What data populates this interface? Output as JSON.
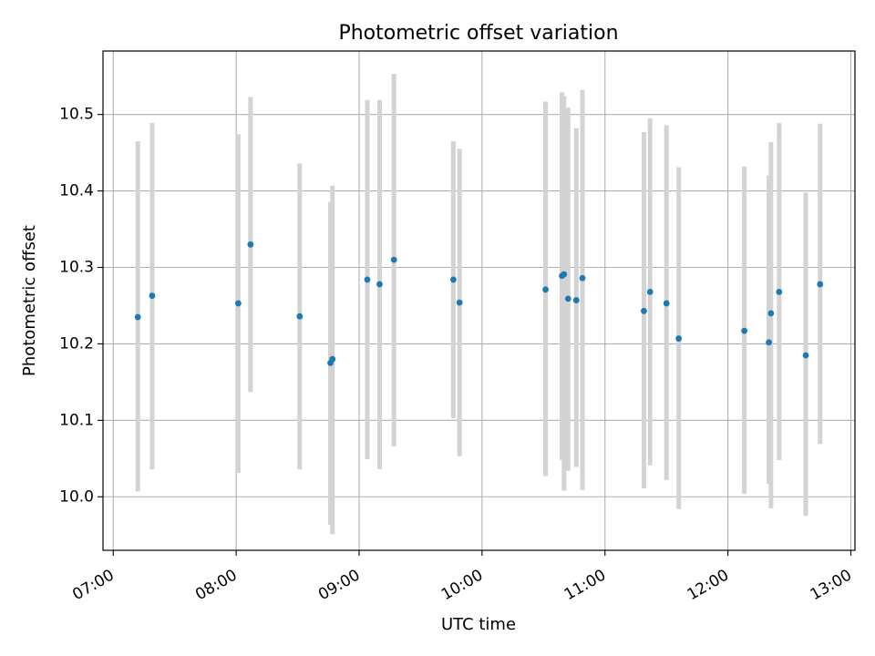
{
  "chart_data": {
    "type": "scatter",
    "title": "Photometric offset variation",
    "xlabel": "UTC time",
    "ylabel": "Photometric offset",
    "grid": true,
    "legend": "none",
    "xlim": [
      "06:55",
      "13:02"
    ],
    "ylim": [
      9.93,
      10.583
    ],
    "x_ticks": [
      "07:00",
      "08:00",
      "09:00",
      "10:00",
      "11:00",
      "12:00",
      "13:00"
    ],
    "y_ticks": [
      "10.0",
      "10.1",
      "10.2",
      "10.3",
      "10.4",
      "10.5"
    ],
    "colors": {
      "points": "#1f77b4",
      "errorbars": "#d3d3d3",
      "grid": "#b0b0b0"
    },
    "series": [
      {
        "x": [
          "07:12",
          "07:19",
          "08:01",
          "08:07",
          "08:31",
          "08:46",
          "08:47",
          "09:04",
          "09:10",
          "09:17",
          "09:46",
          "09:49",
          "10:31",
          "10:39",
          "10:40",
          "10:42",
          "10:46",
          "10:49",
          "11:19",
          "11:22",
          "11:30",
          "11:36",
          "12:08",
          "12:20",
          "12:21",
          "12:25",
          "12:38",
          "12:45"
        ],
        "y": [
          10.235,
          10.263,
          10.253,
          10.33,
          10.236,
          10.175,
          10.18,
          10.284,
          10.278,
          10.31,
          10.284,
          10.254,
          10.271,
          10.289,
          10.291,
          10.259,
          10.257,
          10.286,
          10.243,
          10.268,
          10.253,
          10.207,
          10.217,
          10.202,
          10.24,
          10.268,
          10.185,
          10.278
        ],
        "yerr_low": [
          10.007,
          10.036,
          10.031,
          10.137,
          10.036,
          9.963,
          9.951,
          10.049,
          10.036,
          10.066,
          10.103,
          10.053,
          10.027,
          10.048,
          10.008,
          10.034,
          10.039,
          10.009,
          10.011,
          10.041,
          10.022,
          9.984,
          10.004,
          10.017,
          9.985,
          10.048,
          9.975,
          10.069
        ],
        "yerr_high": [
          10.465,
          10.489,
          10.474,
          10.523,
          10.436,
          10.386,
          10.407,
          10.519,
          10.519,
          10.553,
          10.465,
          10.455,
          10.517,
          10.529,
          10.524,
          10.509,
          10.482,
          10.532,
          10.477,
          10.495,
          10.486,
          10.431,
          10.432,
          10.42,
          10.464,
          10.489,
          10.398,
          10.488
        ]
      }
    ]
  }
}
